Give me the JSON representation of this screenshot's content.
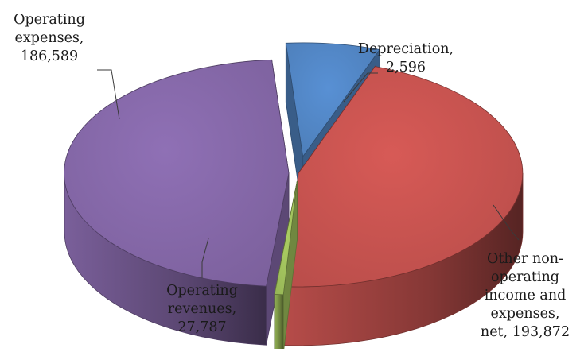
{
  "chart_data": {
    "type": "pie",
    "style": "3d-exploded",
    "title": "",
    "legend": "none",
    "slices": [
      {
        "label": "Operating expenses",
        "value": 186589,
        "label_lines": [
          "Operating",
          "expenses,",
          "186,589"
        ],
        "color": "#c0504d"
      },
      {
        "label": "Depreciation",
        "value": 2596,
        "label_lines": [
          "Depreciation,",
          "2,596"
        ],
        "color": "#9bbb59"
      },
      {
        "label": "Other non-operating income and expenses, net",
        "value": 193872,
        "label_lines": [
          "Other non-",
          "operating",
          "income and",
          "expenses,",
          "net, 193,872"
        ],
        "color": "#8064a2"
      },
      {
        "label": "Operating revenues",
        "value": 27787,
        "label_lines": [
          "Operating",
          "revenues,",
          "27,787"
        ],
        "color": "#4f81bd"
      }
    ]
  }
}
